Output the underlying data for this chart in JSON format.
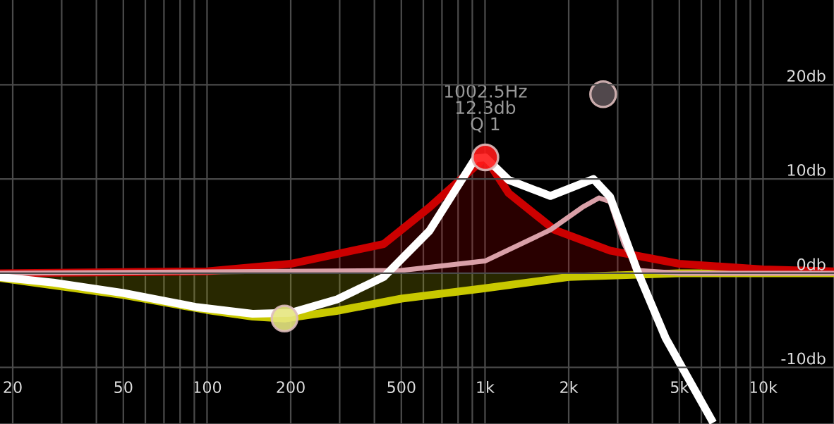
{
  "chart_data": {
    "type": "line",
    "log": "x",
    "grid": true,
    "xlim": [
      18,
      18000
    ],
    "ylim": [
      -16,
      29
    ],
    "xticks": [
      20,
      50,
      100,
      200,
      500,
      {
        "value": 1000,
        "label": "1k"
      },
      {
        "value": 2000,
        "label": "2k"
      },
      {
        "value": 5000,
        "label": "5k"
      },
      {
        "value": 10000,
        "label": "10k"
      }
    ],
    "yticks": [
      {
        "value": -10,
        "label": "-10db"
      },
      {
        "value": 0,
        "label": "0db"
      },
      {
        "value": 10,
        "label": "10db"
      },
      {
        "value": 20,
        "label": "20db"
      }
    ],
    "series": [
      {
        "type": "area",
        "color": "#c8c800",
        "x": [
          18,
          50,
          100,
          146,
          190,
          292,
          500,
          1000,
          2000,
          5000,
          18000
        ],
        "values": [
          -0.5,
          -2.3,
          -3.9,
          -4.6,
          -4.8,
          -4.0,
          -2.7,
          -1.6,
          -0.4,
          0,
          0
        ]
      },
      {
        "type": "area",
        "color": "#cc0000",
        "x": [
          18,
          100,
          200,
          432,
          631,
          1002.5,
          1216,
          1778,
          2818,
          5000,
          10000,
          18000
        ],
        "values": [
          0,
          0.2,
          1.0,
          3.1,
          7.0,
          12.3,
          8.5,
          4.6,
          2.4,
          1.0,
          0.4,
          0.2
        ]
      },
      {
        "color": "#d9a0a8",
        "x": [
          18,
          500,
          1000,
          1718,
          2239,
          2570,
          2818,
          3162,
          3548,
          5000,
          18000
        ],
        "values": [
          0,
          0.3,
          1.3,
          4.6,
          7.0,
          8.0,
          7.6,
          3.1,
          0.3,
          0,
          0
        ]
      },
      {
        "color": "#ffffff",
        "x": [
          18,
          28,
          50,
          92,
          146,
          200,
          292,
          432,
          631,
          923,
          1002.5,
          1216,
          1718,
          2455,
          2818,
          3548,
          4467,
          6513
        ],
        "values": [
          -0.4,
          -1.0,
          -2.1,
          -3.6,
          -4.3,
          -4.2,
          -2.8,
          -0.4,
          4.5,
          12.2,
          12.3,
          9.9,
          8.2,
          10.0,
          8.1,
          0.1,
          -6.9,
          -15.5
        ]
      },
      {
        "type": "scatter",
        "marker": "circle",
        "color": "#e6e680",
        "x": [
          190
        ],
        "values": [
          -4.8
        ]
      },
      {
        "type": "scatter",
        "marker": "circle",
        "color": "#ff1a1a",
        "x": [
          1002.5
        ],
        "values": [
          12.3
        ]
      },
      {
        "type": "scatter",
        "marker": "circle",
        "color": "#5a5054",
        "x": [
          2660
        ],
        "values": [
          19.0
        ]
      }
    ],
    "annotations": [
      {
        "text": "1002.5Hz\n12.3db\nQ 1",
        "x": 1002.5,
        "y": 12.3
      }
    ]
  }
}
